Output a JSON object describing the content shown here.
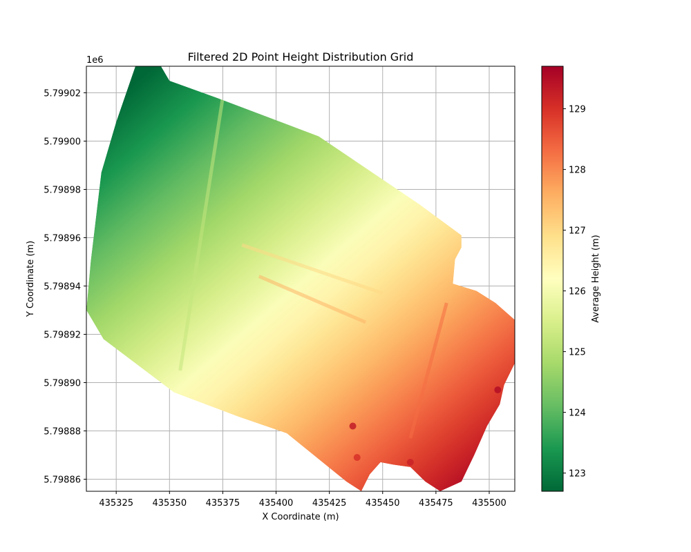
{
  "chart_data": {
    "type": "heatmap",
    "title": "Filtered 2D Point Height Distribution Grid",
    "xlabel": "X Coordinate (m)",
    "ylabel": "Y Coordinate (m)",
    "y_offset_label": "1e6",
    "xlim": [
      435311,
      435512
    ],
    "ylim": [
      5.798855,
      5.799031
    ],
    "x_ticks": [
      435325,
      435350,
      435375,
      435400,
      435425,
      435450,
      435475,
      435500
    ],
    "x_tick_labels": [
      "435325",
      "435350",
      "435375",
      "435400",
      "435425",
      "435450",
      "435475",
      "435500"
    ],
    "y_ticks": [
      5.79886,
      5.79888,
      5.7989,
      5.79892,
      5.79894,
      5.79896,
      5.79898,
      5.799,
      5.79902
    ],
    "y_tick_labels": [
      "5.79886",
      "5.79888",
      "5.79890",
      "5.79892",
      "5.79894",
      "5.79896",
      "5.79898",
      "5.79900",
      "5.79902"
    ],
    "grid": true,
    "colormap": "RdYlGn_r",
    "colorbar": {
      "label": "Average Height (m)",
      "range": [
        122.7,
        129.7
      ],
      "ticks": [
        123,
        124,
        125,
        126,
        127,
        128,
        129
      ],
      "tick_labels": [
        "123",
        "124",
        "125",
        "126",
        "127",
        "128",
        "129"
      ]
    },
    "footprint_polygon": [
      [
        435334,
        5.799031
      ],
      [
        435346,
        5.799031
      ],
      [
        435350,
        5.799025
      ],
      [
        435372,
        5.799018
      ],
      [
        435420,
        5.799002
      ],
      [
        435467,
        5.798974
      ],
      [
        435487,
        5.798961
      ],
      [
        435487,
        5.798956
      ],
      [
        435484,
        5.798951
      ],
      [
        435483,
        5.798941
      ],
      [
        435494,
        5.798938
      ],
      [
        435503,
        5.798933
      ],
      [
        435512,
        5.798926
      ],
      [
        435512,
        5.798908
      ],
      [
        435507,
        5.798899
      ],
      [
        435505,
        5.798891
      ],
      [
        435499,
        5.798882
      ],
      [
        435493,
        5.79887
      ],
      [
        435487,
        5.798859
      ],
      [
        435477,
        5.798855
      ],
      [
        435470,
        5.798859
      ],
      [
        435463,
        5.798865
      ],
      [
        435455,
        5.798866
      ],
      [
        435449,
        5.798867
      ],
      [
        435444,
        5.798862
      ],
      [
        435440,
        5.798855
      ],
      [
        435433,
        5.798859
      ],
      [
        435405,
        5.798879
      ],
      [
        435382,
        5.798886
      ],
      [
        435352,
        5.798896
      ],
      [
        435319,
        5.798918
      ],
      [
        435311,
        5.79893
      ],
      [
        435313,
        5.79895
      ],
      [
        435318,
        5.798987
      ],
      [
        435325,
        5.799008
      ]
    ],
    "height_gradient": {
      "low_corner": [
        435335,
        5.799025
      ],
      "high_corner": [
        435495,
        5.798862
      ],
      "min": 122.7,
      "max": 129.5
    },
    "features": [
      {
        "from": [
          435384,
          5.798957
        ],
        "to": [
          435450,
          5.798937
        ],
        "value": 127.0
      },
      {
        "from": [
          435392,
          5.798944
        ],
        "to": [
          435442,
          5.798925
        ],
        "value": 127.5
      },
      {
        "from": [
          435355,
          5.798905
        ],
        "to": [
          435375,
          5.799018
        ],
        "value": 125.2
      },
      {
        "from": [
          435463,
          5.798877
        ],
        "to": [
          435480,
          5.798933
        ],
        "value": 128.3
      }
    ],
    "hotspots": [
      {
        "x": 435438,
        "y": 5.798869,
        "value": 129.0
      },
      {
        "x": 435436,
        "y": 5.798882,
        "value": 129.3
      },
      {
        "x": 435463,
        "y": 5.798867,
        "value": 129.2
      },
      {
        "x": 435504,
        "y": 5.798897,
        "value": 129.5
      }
    ]
  }
}
